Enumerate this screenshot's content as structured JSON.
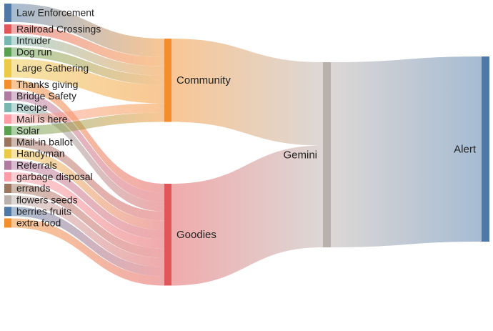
{
  "chart_data": {
    "type": "sankey",
    "nodes": [
      {
        "id": "law",
        "label": "Law Enforcement",
        "color": "#4e79a7"
      },
      {
        "id": "rail",
        "label": "Railroad Crossings",
        "color": "#e15759"
      },
      {
        "id": "intruder",
        "label": "Intruder",
        "color": "#76b7b2"
      },
      {
        "id": "dog",
        "label": "Dog run",
        "color": "#59a14f"
      },
      {
        "id": "gathering",
        "label": "Large Gathering",
        "color": "#edc948"
      },
      {
        "id": "thanks",
        "label": "Thanks giving",
        "color": "#f28e2b"
      },
      {
        "id": "bridge",
        "label": "Bridge Safety",
        "color": "#b07aa1"
      },
      {
        "id": "recipe",
        "label": "Recipe",
        "color": "#76b7b2"
      },
      {
        "id": "mail",
        "label": "Mail is here",
        "color": "#ff9da7"
      },
      {
        "id": "solar",
        "label": "Solar",
        "color": "#59a14f"
      },
      {
        "id": "ballot",
        "label": "Mail-in ballot",
        "color": "#9c755f"
      },
      {
        "id": "handyman",
        "label": "Handyman",
        "color": "#edc948"
      },
      {
        "id": "referrals",
        "label": "Referrals",
        "color": "#b07aa1"
      },
      {
        "id": "garbage",
        "label": "garbage disposal",
        "color": "#ff9da7"
      },
      {
        "id": "errands",
        "label": "errands",
        "color": "#9c755f"
      },
      {
        "id": "flowers",
        "label": "flowers seeds",
        "color": "#bab0ac"
      },
      {
        "id": "berries",
        "label": "berries fruits",
        "color": "#4e79a7"
      },
      {
        "id": "food",
        "label": "extra food",
        "color": "#f28e2b"
      },
      {
        "id": "community",
        "label": "Community",
        "color": "#f28e2b"
      },
      {
        "id": "goodies",
        "label": "Goodies",
        "color": "#e15759"
      },
      {
        "id": "gemini",
        "label": "Gemini",
        "color": "#bab0ac"
      },
      {
        "id": "alert",
        "label": "Alert",
        "color": "#4e79a7"
      }
    ],
    "links": [
      {
        "source": "law",
        "target": "community",
        "value": 2
      },
      {
        "source": "rail",
        "target": "community",
        "value": 1
      },
      {
        "source": "intruder",
        "target": "community",
        "value": 1
      },
      {
        "source": "dog",
        "target": "community",
        "value": 1
      },
      {
        "source": "gathering",
        "target": "community",
        "value": 2
      },
      {
        "source": "thanks",
        "target": "goodies",
        "value": 1
      },
      {
        "source": "bridge",
        "target": "goodies",
        "value": 1
      },
      {
        "source": "recipe",
        "target": "goodies",
        "value": 1
      },
      {
        "source": "mail",
        "target": "community",
        "value": 1
      },
      {
        "source": "solar",
        "target": "community",
        "value": 1
      },
      {
        "source": "ballot",
        "target": "goodies",
        "value": 1
      },
      {
        "source": "handyman",
        "target": "goodies",
        "value": 1
      },
      {
        "source": "referrals",
        "target": "goodies",
        "value": 1
      },
      {
        "source": "garbage",
        "target": "goodies",
        "value": 1
      },
      {
        "source": "errands",
        "target": "goodies",
        "value": 1
      },
      {
        "source": "flowers",
        "target": "goodies",
        "value": 1
      },
      {
        "source": "berries",
        "target": "goodies",
        "value": 1
      },
      {
        "source": "food",
        "target": "goodies",
        "value": 1
      },
      {
        "source": "community",
        "target": "gemini",
        "value": 9
      },
      {
        "source": "goodies",
        "target": "gemini",
        "value": 11
      },
      {
        "source": "gemini",
        "target": "alert",
        "value": 20
      }
    ]
  }
}
